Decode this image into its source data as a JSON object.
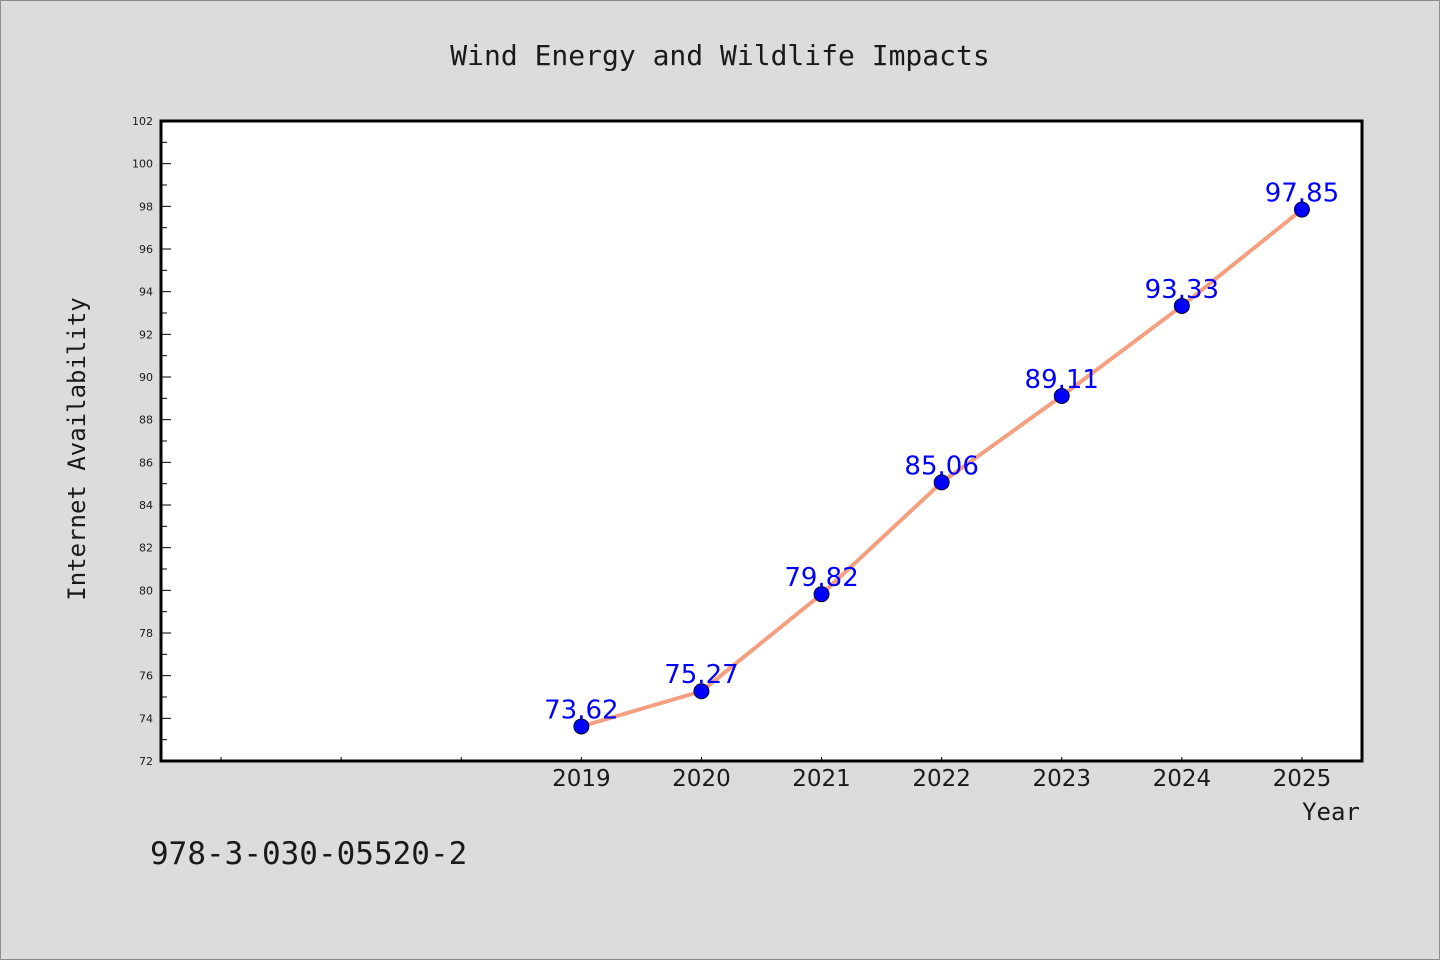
{
  "chart_data": {
    "type": "line",
    "title": "Wind Energy and Wildlife Impacts",
    "xlabel": "Year",
    "ylabel": "Internet Availability",
    "x": [
      "2019",
      "2020",
      "2021",
      "2022",
      "2023",
      "2024",
      "2025"
    ],
    "xlim": [
      2015.5,
      2025.5
    ],
    "ylim": [
      72,
      102
    ],
    "yticks": [
      72,
      74,
      76,
      78,
      80,
      82,
      84,
      86,
      88,
      90,
      92,
      94,
      96,
      98,
      100,
      102
    ],
    "series": [
      {
        "values": [
          73.62,
          75.27,
          79.82,
          85.06,
          89.11,
          93.33,
          97.85
        ],
        "labels": [
          "73.62",
          "75.27",
          "79.82",
          "85.06",
          "89.11",
          "93.33",
          "97.85"
        ],
        "line_color": "#f4a080",
        "marker_color": "#0000ff"
      }
    ],
    "grid": false,
    "legend": "none"
  },
  "annotation": "978-3-030-05520-2",
  "colors": {
    "background": "#dcdcdc",
    "plot_background": "#ffffff",
    "axis": "#000000",
    "text": "#1a1a1a"
  }
}
